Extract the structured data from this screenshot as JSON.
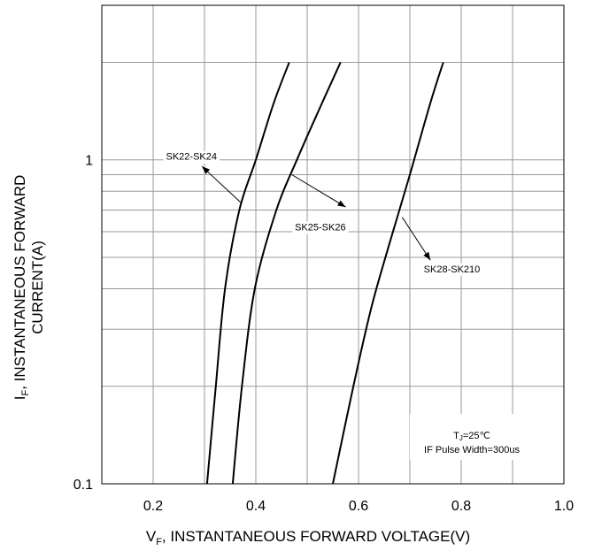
{
  "chart_data": {
    "type": "line",
    "title": "",
    "xlabel": "V_F, INSTANTANEOUS FORWARD VOLTAGE(V)",
    "xlabel_main": "V",
    "xlabel_sub": "F",
    "xlabel_rest": ", INSTANTANEOUS FORWARD VOLTAGE(V)",
    "ylabel": "I_F, INSTANTANEOUS FORWARD CURRENT(A)",
    "ylabel_main": "I",
    "ylabel_sub": "F",
    "ylabel_rest": ", INSTANTANEOUS FORWARD",
    "ylabel_line2": "CURRENT(A)",
    "xlim": [
      0.1,
      1.0
    ],
    "ylim": [
      0.1,
      3.0
    ],
    "yscale": "log",
    "grid": true,
    "x_ticks": [
      {
        "value": 0.2,
        "label": "0.2"
      },
      {
        "value": 0.4,
        "label": "0.4"
      },
      {
        "value": 0.6,
        "label": "0.6"
      },
      {
        "value": 0.8,
        "label": "0.8"
      },
      {
        "value": 1.0,
        "label": "1.0"
      }
    ],
    "y_ticks": [
      {
        "value": 0.1,
        "label": "0.1"
      },
      {
        "value": 1,
        "label": "1"
      }
    ],
    "series": [
      {
        "name": "SK22-SK24",
        "points": [
          [
            0.305,
            0.1
          ],
          [
            0.322,
            0.2
          ],
          [
            0.34,
            0.4
          ],
          [
            0.368,
            0.7
          ],
          [
            0.4,
            1.0
          ],
          [
            0.435,
            1.5
          ],
          [
            0.465,
            2.0
          ]
        ],
        "label_at": [
          0.225,
          1.0
        ],
        "arrow_from": [
          0.37,
          0.74
        ],
        "arrow_to": [
          0.295,
          0.955
        ]
      },
      {
        "name": "SK25-SK26",
        "points": [
          [
            0.355,
            0.1
          ],
          [
            0.373,
            0.2
          ],
          [
            0.398,
            0.4
          ],
          [
            0.44,
            0.7
          ],
          [
            0.48,
            1.0
          ],
          [
            0.525,
            1.45
          ],
          [
            0.565,
            2.0
          ]
        ],
        "label_at": [
          0.476,
          0.605
        ],
        "arrow_from": [
          0.47,
          0.9
        ],
        "arrow_to": [
          0.575,
          0.715
        ]
      },
      {
        "name": "SK28-SK210",
        "points": [
          [
            0.55,
            0.1
          ],
          [
            0.59,
            0.2
          ],
          [
            0.625,
            0.35
          ],
          [
            0.66,
            0.55
          ],
          [
            0.7,
            0.9
          ],
          [
            0.74,
            1.5
          ],
          [
            0.765,
            2.0
          ]
        ],
        "label_at": [
          0.727,
          0.45
        ],
        "arrow_from": [
          0.685,
          0.665
        ],
        "arrow_to": [
          0.74,
          0.49
        ]
      }
    ],
    "annotation_line1_main": "T",
    "annotation_line1_sub": "J",
    "annotation_line1_rest": "=25℃",
    "annotation_line2": "IF Pulse Width=300us"
  }
}
